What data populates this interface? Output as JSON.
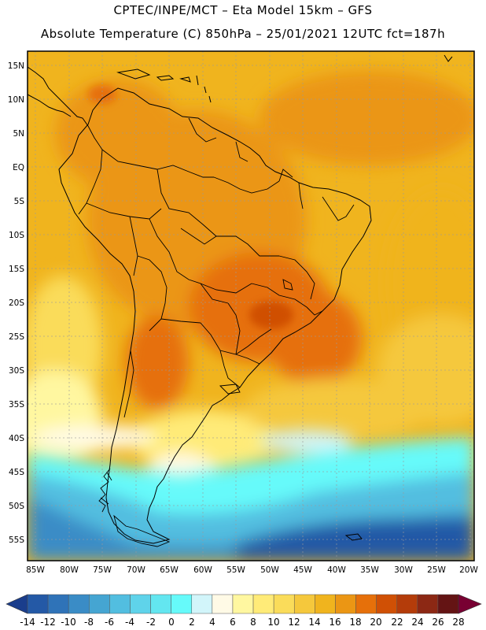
{
  "header": {
    "line1": "CPTEC/INPE/MCT –   Eta Model 15km – GFS",
    "line2": "Absolute Temperature (C) 850hPa – 25/01/2021 12UTC fct=187h"
  },
  "axes": {
    "lat_labels": [
      "15N",
      "10N",
      "5N",
      "EQ",
      "5S",
      "10S",
      "15S",
      "20S",
      "25S",
      "30S",
      "35S",
      "40S",
      "45S",
      "50S",
      "55S"
    ],
    "lon_labels": [
      "85W",
      "80W",
      "75W",
      "70W",
      "65W",
      "60W",
      "55W",
      "50W",
      "45W",
      "40W",
      "35W",
      "30W",
      "25W",
      "20W"
    ]
  },
  "colorbar": {
    "labels": [
      "-14",
      "-12",
      "-10",
      "-8",
      "-6",
      "-4",
      "-2",
      "0",
      "2",
      "4",
      "6",
      "8",
      "10",
      "12",
      "14",
      "16",
      "18",
      "20",
      "22",
      "24",
      "26",
      "28"
    ],
    "colors": [
      "#1a3d8c",
      "#2459a6",
      "#2f73b8",
      "#3a8cc6",
      "#45a5d2",
      "#52bee0",
      "#5fd3ea",
      "#63e6f0",
      "#66fafa",
      "#d2f5fa",
      "#fffae6",
      "#fff7a0",
      "#ffeb78",
      "#fadc5a",
      "#f5c83c",
      "#f0b41e",
      "#eb9614",
      "#e6700a",
      "#d05005",
      "#b43c0a",
      "#8c2814",
      "#641414",
      "#780032"
    ]
  }
}
